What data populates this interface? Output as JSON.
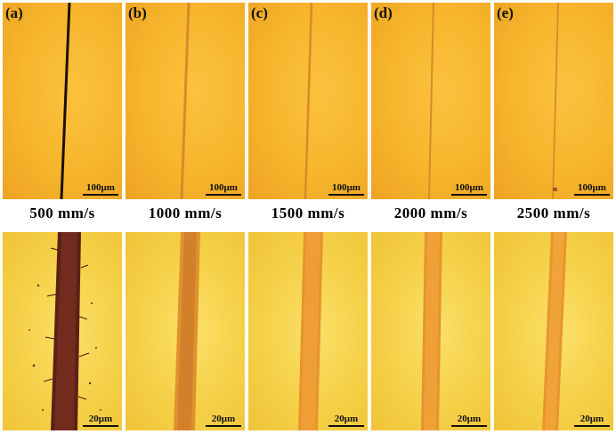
{
  "top_row": {
    "panels": [
      {
        "letter": "(a)",
        "scale": "100μm"
      },
      {
        "letter": "(b)",
        "scale": "100μm"
      },
      {
        "letter": "(c)",
        "scale": "100μm"
      },
      {
        "letter": "(d)",
        "scale": "100μm"
      },
      {
        "letter": "(e)",
        "scale": "100μm"
      }
    ]
  },
  "speed_labels": [
    "500 mm/s",
    "1000 mm/s",
    "1500 mm/s",
    "2000 mm/s",
    "2500 mm/s"
  ],
  "bottom_row": {
    "panels": [
      {
        "scale": "20μm"
      },
      {
        "scale": "20μm"
      },
      {
        "scale": "20μm"
      },
      {
        "scale": "20μm"
      },
      {
        "scale": "20μm"
      }
    ]
  },
  "colors": {
    "top_background": "#f6b52c",
    "bottom_background": "#f6d24a",
    "track_dark": "#3a1410",
    "track_orange": "#e58f2a"
  }
}
